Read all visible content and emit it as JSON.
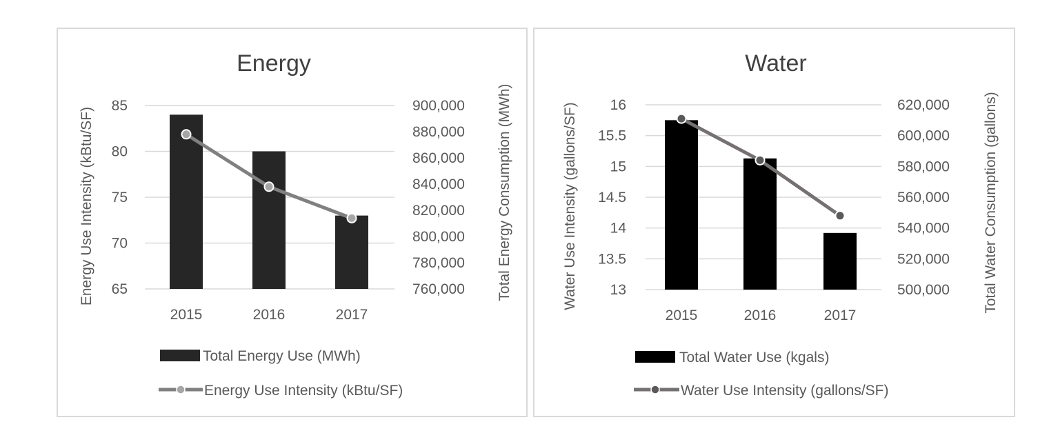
{
  "colors": {
    "energy_bar": "#262626",
    "water_bar": "#000000",
    "energy_line": "#808080",
    "energy_marker": "#a6a6a6",
    "water_line": "#767171",
    "water_marker": "#595959",
    "grid": "#d9d9d9"
  },
  "chart_data": [
    {
      "type": "bar",
      "title": "Energy",
      "categories": [
        "2015",
        "2016",
        "2017"
      ],
      "series": [
        {
          "name": "Total Energy Use (MWh)",
          "kind": "bar",
          "axis": "left",
          "values": [
            84,
            80,
            73
          ]
        },
        {
          "name": "Energy Use Intensity (kBtu/SF)",
          "kind": "line",
          "axis": "right",
          "values": [
            878000,
            838000,
            814000
          ]
        }
      ],
      "ylabel": "Energy Use Intensity (kBtu/SF)",
      "y2label": "Total Energy Consumption (MWh)",
      "ylim": [
        65,
        85
      ],
      "yticks": [
        65,
        70,
        75,
        80,
        85
      ],
      "ytick_labels": [
        "65",
        "70",
        "75",
        "80",
        "85"
      ],
      "y2lim": [
        760000,
        900000
      ],
      "y2ticks": [
        760000,
        780000,
        800000,
        820000,
        840000,
        860000,
        880000,
        900000
      ],
      "y2tick_labels": [
        "760,000",
        "780,000",
        "800,000",
        "820,000",
        "840,000",
        "860,000",
        "880,000",
        "900,000"
      ],
      "grid": true,
      "legend": "bottom"
    },
    {
      "type": "bar",
      "title": "Water",
      "categories": [
        "2015",
        "2016",
        "2017"
      ],
      "series": [
        {
          "name": "Total Water Use (kgals)",
          "kind": "bar",
          "axis": "left",
          "values": [
            15.75,
            15.13,
            13.92
          ]
        },
        {
          "name": "Water Use Intensity (gallons/SF)",
          "kind": "line",
          "axis": "right",
          "values": [
            611000,
            584000,
            548000
          ]
        }
      ],
      "ylabel": "Water Use Intensity (gallons/SF)",
      "y2label": "Total Water Consumption (gallons)",
      "ylim": [
        13,
        16
      ],
      "yticks": [
        13,
        13.5,
        14,
        14.5,
        15,
        15.5,
        16
      ],
      "ytick_labels": [
        "13",
        "13.5",
        "14",
        "14.5",
        "15",
        "15.5",
        "16"
      ],
      "y2lim": [
        500000,
        620000
      ],
      "y2ticks": [
        500000,
        520000,
        540000,
        560000,
        580000,
        600000,
        620000
      ],
      "y2tick_labels": [
        "500,000",
        "520,000",
        "540,000",
        "560,000",
        "580,000",
        "600,000",
        "620,000"
      ],
      "grid": true,
      "legend": "bottom"
    }
  ]
}
